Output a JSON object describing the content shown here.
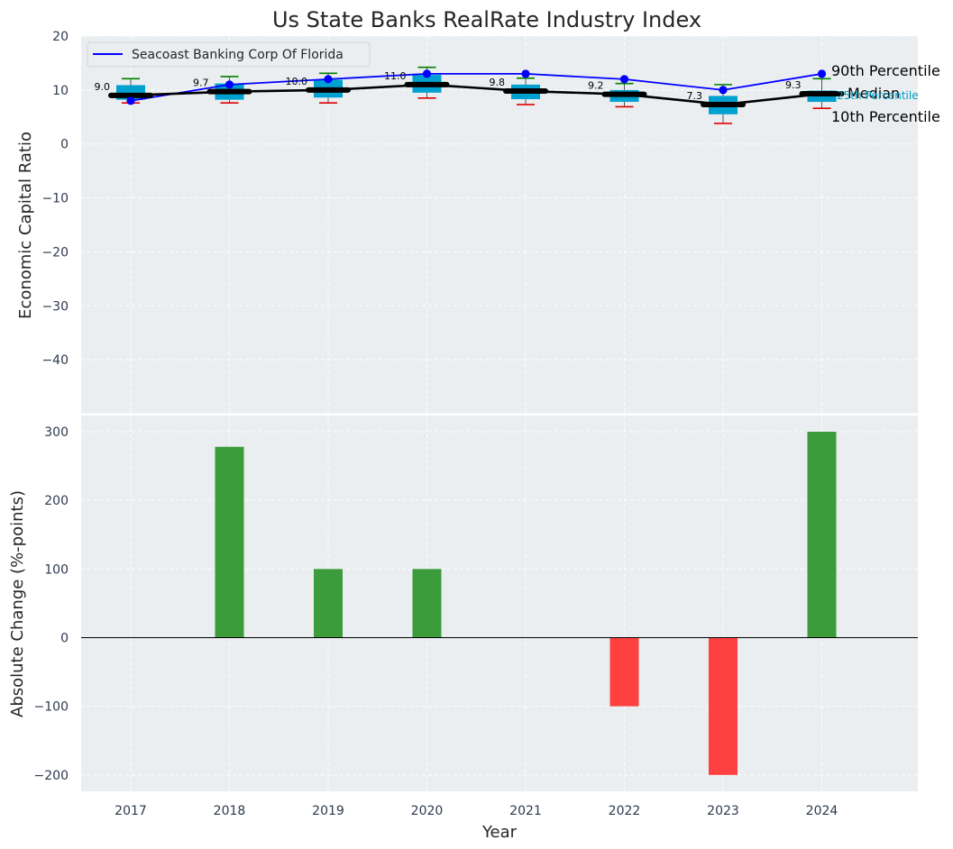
{
  "chart_data": [
    {
      "type": "box",
      "title": "Us State Banks RealRate Industry Index",
      "xlabel": "",
      "ylabel": "Economic Capital Ratio",
      "ylim": [
        -50,
        20
      ],
      "yticks": [
        20,
        10,
        0,
        -10,
        -20,
        -30,
        -40
      ],
      "yticklabels": [
        "20",
        "10",
        "0",
        "−10",
        "−20",
        "−30",
        "−40"
      ],
      "categories": [
        "2017",
        "2018",
        "2019",
        "2020",
        "2021",
        "2022",
        "2023",
        "2024"
      ],
      "boxes": [
        {
          "p10": 7.6,
          "p25": 8.2,
          "median": 9.0,
          "p75": 10.9,
          "p90": 12.1
        },
        {
          "p10": 7.6,
          "p25": 8.2,
          "median": 9.7,
          "p75": 11.2,
          "p90": 12.5
        },
        {
          "p10": 7.6,
          "p25": 8.6,
          "median": 10.0,
          "p75": 11.9,
          "p90": 13.1
        },
        {
          "p10": 8.5,
          "p25": 9.5,
          "median": 11.0,
          "p75": 12.8,
          "p90": 14.2
        },
        {
          "p10": 7.3,
          "p25": 8.3,
          "median": 9.8,
          "p75": 11.0,
          "p90": 12.2
        },
        {
          "p10": 6.9,
          "p25": 7.8,
          "median": 9.2,
          "p75": 10.0,
          "p90": 11.2
        },
        {
          "p10": 3.8,
          "p25": 5.5,
          "median": 7.3,
          "p75": 8.9,
          "p90": 11.0
        },
        {
          "p10": 6.6,
          "p25": 7.8,
          "median": 9.3,
          "p75": 9.9,
          "p90": 12.1
        }
      ],
      "median_labels": [
        "9.0",
        "9.7",
        "10.0",
        "11.0",
        "9.8",
        "9.2",
        "7.3",
        "9.3"
      ],
      "series": [
        {
          "name": "Seacoast Banking Corp Of Florida",
          "values": [
            8.0,
            11.0,
            12.0,
            13.0,
            13.0,
            12.0,
            10.0,
            13.0
          ],
          "color": "#0000ff"
        },
        {
          "name": "Median",
          "values": [
            9.0,
            9.7,
            10.0,
            11.0,
            9.8,
            9.2,
            7.3,
            9.3
          ],
          "color": "#000000"
        }
      ],
      "legend": {
        "entries": [
          "Seacoast Banking Corp Of Florida"
        ],
        "placement": "top-left"
      },
      "annotations": [
        "90th Percentile",
        "Median",
        "25th Percentile",
        "10th Percentile"
      ]
    },
    {
      "type": "bar",
      "title": "",
      "xlabel": "Year",
      "ylabel": "Absolute Change (%-points)",
      "ylim": [
        -225,
        325
      ],
      "yticks": [
        300,
        200,
        100,
        0,
        -100,
        -200
      ],
      "yticklabels": [
        "300",
        "200",
        "100",
        "0",
        "−100",
        "−200"
      ],
      "categories": [
        "2017",
        "2018",
        "2019",
        "2020",
        "2021",
        "2022",
        "2023",
        "2024"
      ],
      "values": [
        0,
        278,
        100,
        100,
        0,
        -100,
        -200,
        300
      ]
    }
  ],
  "colors": {
    "background": "#eaeef0",
    "box_fill": "#00a0d0",
    "whisker_high": "#008000",
    "whisker_low": "#e00000",
    "bar_positive": "#3c9c3c",
    "bar_negative": "#ff4040",
    "percentile_25_text": "#00a0c8"
  }
}
